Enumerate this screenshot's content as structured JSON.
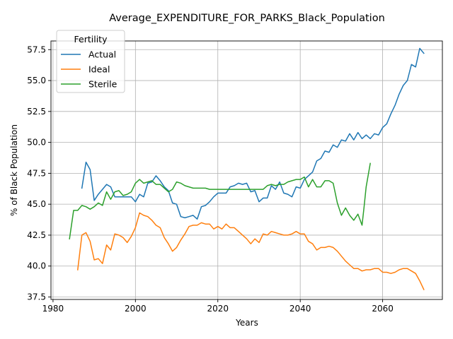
{
  "chart_data": {
    "type": "line",
    "title": "Average_EXPENDITURE_FOR_PARKS_Black_Population",
    "xlabel": "Years",
    "ylabel": "% of Black Population",
    "xlim": [
      1979.5,
      2074.5
    ],
    "ylim": [
      37.3,
      58.2
    ],
    "x_ticks": [
      1980,
      2000,
      2020,
      2040,
      2060
    ],
    "x_tick_labels": [
      "1980",
      "2000",
      "2020",
      "2040",
      "2060"
    ],
    "y_ticks": [
      37.5,
      40.0,
      42.5,
      45.0,
      47.5,
      50.0,
      52.5,
      55.0,
      57.5
    ],
    "y_tick_labels": [
      "37.5",
      "40.0",
      "42.5",
      "45.0",
      "47.5",
      "50.0",
      "52.5",
      "55.0",
      "57.5"
    ],
    "grid": true,
    "legend": {
      "title": "Fertility",
      "placement": "top-left"
    },
    "series": [
      {
        "name": "Actual",
        "color": "#1f77b4",
        "x": [
          1987,
          1988,
          1989,
          1990,
          1991,
          1992,
          1993,
          1994,
          1995,
          1996,
          1997,
          1998,
          1999,
          2000,
          2001,
          2002,
          2003,
          2004,
          2005,
          2006,
          2007,
          2008,
          2009,
          2010,
          2011,
          2012,
          2013,
          2014,
          2015,
          2016,
          2017,
          2018,
          2019,
          2020,
          2021,
          2022,
          2023,
          2024,
          2025,
          2026,
          2027,
          2028,
          2029,
          2030,
          2031,
          2032,
          2033,
          2034,
          2035,
          2036,
          2037,
          2038,
          2039,
          2040,
          2041,
          2042,
          2043,
          2044,
          2045,
          2046,
          2047,
          2048,
          2049,
          2050,
          2051,
          2052,
          2053,
          2054,
          2055,
          2056,
          2057,
          2058,
          2059,
          2060,
          2061,
          2062,
          2063,
          2064,
          2065,
          2066,
          2067,
          2068,
          2069,
          2070
        ],
        "values": [
          46.3,
          48.4,
          47.8,
          45.3,
          45.8,
          46.2,
          46.6,
          46.4,
          45.6,
          45.6,
          45.6,
          45.6,
          45.6,
          45.2,
          45.8,
          45.6,
          46.7,
          46.8,
          47.3,
          46.9,
          46.4,
          46.1,
          45.1,
          45.0,
          44.0,
          43.9,
          44.0,
          44.1,
          43.8,
          44.8,
          44.9,
          45.2,
          45.6,
          45.9,
          45.9,
          45.9,
          46.4,
          46.5,
          46.7,
          46.6,
          46.7,
          46.0,
          46.1,
          45.2,
          45.5,
          45.5,
          46.5,
          46.2,
          46.8,
          45.9,
          45.8,
          45.6,
          46.4,
          46.3,
          47.0,
          47.3,
          47.6,
          48.5,
          48.7,
          49.3,
          49.2,
          49.8,
          49.6,
          50.2,
          50.1,
          50.7,
          50.2,
          50.8,
          50.3,
          50.6,
          50.3,
          50.7,
          50.6,
          51.2,
          51.5,
          52.3,
          53.0,
          53.9,
          54.6,
          55.0,
          56.3,
          56.1,
          57.6,
          57.2
        ]
      },
      {
        "name": "Ideal",
        "color": "#ff7f0e",
        "x": [
          1986,
          1987,
          1988,
          1989,
          1990,
          1991,
          1992,
          1993,
          1994,
          1995,
          1996,
          1997,
          1998,
          1999,
          2000,
          2001,
          2002,
          2003,
          2004,
          2005,
          2006,
          2007,
          2008,
          2009,
          2010,
          2011,
          2012,
          2013,
          2014,
          2015,
          2016,
          2017,
          2018,
          2019,
          2020,
          2021,
          2022,
          2023,
          2024,
          2025,
          2026,
          2027,
          2028,
          2029,
          2030,
          2031,
          2032,
          2033,
          2034,
          2035,
          2036,
          2037,
          2038,
          2039,
          2040,
          2041,
          2042,
          2043,
          2044,
          2045,
          2046,
          2047,
          2048,
          2049,
          2050,
          2051,
          2052,
          2053,
          2054,
          2055,
          2056,
          2057,
          2058,
          2059,
          2060,
          2061,
          2062,
          2063,
          2064,
          2065,
          2066,
          2067,
          2068,
          2069,
          2070
        ],
        "values": [
          39.7,
          42.5,
          42.7,
          42.0,
          40.5,
          40.6,
          40.2,
          41.7,
          41.3,
          42.6,
          42.5,
          42.3,
          41.9,
          42.4,
          43.1,
          44.3,
          44.1,
          44.0,
          43.7,
          43.3,
          43.1,
          42.3,
          41.8,
          41.2,
          41.5,
          42.1,
          42.6,
          43.2,
          43.3,
          43.3,
          43.5,
          43.4,
          43.4,
          43.0,
          43.2,
          43.0,
          43.4,
          43.1,
          43.1,
          42.8,
          42.5,
          42.2,
          41.8,
          42.2,
          41.9,
          42.6,
          42.5,
          42.8,
          42.7,
          42.6,
          42.5,
          42.5,
          42.6,
          42.8,
          42.6,
          42.6,
          42.0,
          41.8,
          41.3,
          41.5,
          41.5,
          41.6,
          41.5,
          41.2,
          40.8,
          40.4,
          40.1,
          39.8,
          39.8,
          39.6,
          39.7,
          39.7,
          39.8,
          39.8,
          39.5,
          39.5,
          39.4,
          39.5,
          39.7,
          39.8,
          39.8,
          39.6,
          39.4,
          38.8,
          38.1
        ]
      },
      {
        "name": "Sterile",
        "color": "#2ca02c",
        "x": [
          1984,
          1985,
          1986,
          1987,
          1988,
          1989,
          1990,
          1991,
          1992,
          1993,
          1994,
          1995,
          1996,
          1997,
          1998,
          1999,
          2000,
          2001,
          2002,
          2003,
          2004,
          2005,
          2006,
          2007,
          2008,
          2009,
          2010,
          2011,
          2012,
          2013,
          2014,
          2015,
          2016,
          2017,
          2018,
          2019,
          2020,
          2021,
          2022,
          2023,
          2024,
          2025,
          2026,
          2027,
          2028,
          2029,
          2030,
          2031,
          2032,
          2033,
          2034,
          2035,
          2036,
          2037,
          2038,
          2039,
          2040,
          2041,
          2042,
          2043,
          2044,
          2045,
          2046,
          2047,
          2048,
          2049,
          2050,
          2051,
          2052,
          2053,
          2054,
          2055,
          2055.5,
          2056,
          2057
        ],
        "values": [
          42.2,
          44.5,
          44.5,
          44.9,
          44.8,
          44.6,
          44.8,
          45.1,
          44.9,
          46.0,
          45.4,
          46.0,
          46.1,
          45.7,
          45.8,
          46.0,
          46.7,
          47.0,
          46.7,
          46.8,
          46.9,
          46.6,
          46.6,
          46.3,
          46.0,
          46.2,
          46.8,
          46.7,
          46.5,
          46.4,
          46.3,
          46.3,
          46.3,
          46.3,
          46.2,
          46.2,
          46.2,
          46.2,
          46.2,
          46.2,
          46.2,
          46.2,
          46.2,
          46.2,
          46.2,
          46.2,
          46.2,
          46.2,
          46.5,
          46.6,
          46.5,
          46.6,
          46.6,
          46.8,
          46.9,
          47.0,
          47.0,
          47.2,
          46.4,
          47.0,
          46.4,
          46.4,
          46.9,
          46.9,
          46.7,
          45.1,
          44.1,
          44.7,
          44.1,
          43.7,
          44.2,
          43.3,
          44.8,
          46.4,
          48.3
        ]
      }
    ]
  }
}
